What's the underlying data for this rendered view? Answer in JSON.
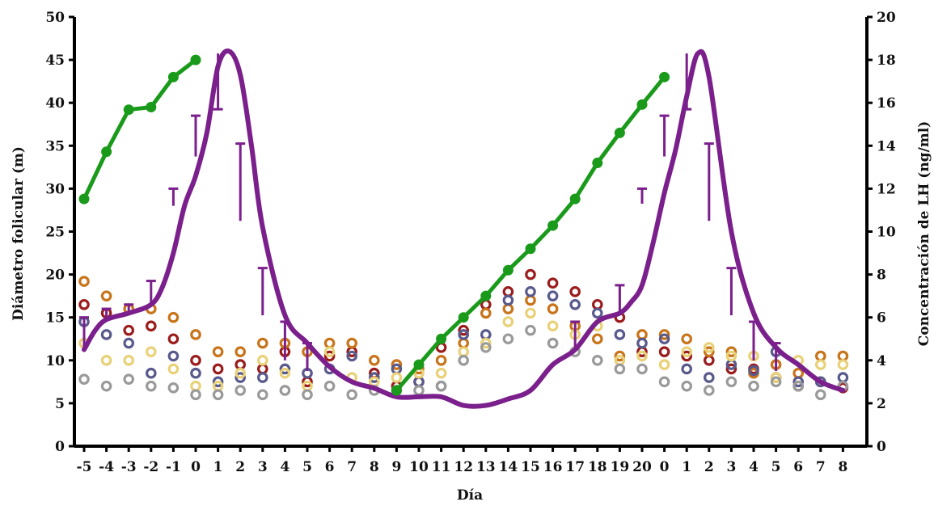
{
  "chart_data": {
    "type": "line",
    "xlabel": "Día",
    "ylabel_left": "Diámetro folicular (m)",
    "ylabel_right": "Concentración de LH (ng/ml)",
    "x_tick_labels": [
      "-5",
      "-4",
      "-3",
      "-2",
      "-1",
      "0",
      "1",
      "2",
      "3",
      "4",
      "5",
      "6",
      "7",
      "8",
      "9",
      "10",
      "11",
      "12",
      "13",
      "14",
      "15",
      "16",
      "17",
      "18",
      "19",
      "20",
      "0",
      "1",
      "2",
      "3",
      "4",
      "5",
      "6",
      "7",
      "8"
    ],
    "y_left": {
      "ylim": [
        0,
        50
      ],
      "ticks": [
        "0",
        "5",
        "10",
        "15",
        "20",
        "25",
        "30",
        "35",
        "40",
        "45",
        "50"
      ]
    },
    "y_right": {
      "ylim": [
        0,
        20
      ],
      "ticks": [
        "0",
        "2",
        "4",
        "6",
        "8",
        "10",
        "12",
        "14",
        "16",
        "18",
        "20"
      ]
    },
    "colors": {
      "dominant_follicle": "#1a9a1a",
      "lh": "#7a1f8c",
      "follicle_markers": [
        "#9b1c1c",
        "#c8741a",
        "#595a8c",
        "#e9d178",
        "#9a9a9a"
      ]
    },
    "series": [
      {
        "axis": "left",
        "x": [
          0,
          1,
          2,
          3,
          4,
          5
        ],
        "values": [
          28.8,
          34.3,
          39.2,
          39.5,
          43.0,
          45.0
        ]
      },
      {
        "axis": "left",
        "x": [
          14,
          15,
          16,
          17,
          18,
          19,
          20,
          21,
          22,
          23,
          24,
          25,
          26
        ],
        "values": [
          6.5,
          9.5,
          12.5,
          15.0,
          17.5,
          20.5,
          23.0,
          25.7,
          28.8,
          33.0,
          36.5,
          39.8,
          43.0
        ]
      },
      {
        "axis": "right",
        "x": [
          0,
          0.5,
          1,
          2,
          3,
          3.5,
          4,
          4.5,
          5,
          5.5,
          6,
          6.5,
          7,
          7.5,
          8,
          9,
          10,
          11,
          12,
          13,
          14,
          15,
          16,
          17,
          18,
          19,
          20,
          21,
          22,
          23,
          24,
          24.5,
          25,
          25.5,
          26,
          26.5,
          27,
          27.5,
          28,
          29,
          30,
          31,
          32,
          33,
          34
        ],
        "values": [
          4.5,
          5.4,
          5.9,
          6.2,
          6.6,
          7.4,
          9.0,
          11.2,
          12.6,
          14.6,
          17.7,
          18.4,
          17.3,
          14.0,
          10.2,
          6.1,
          4.8,
          3.7,
          3.0,
          2.7,
          2.3,
          2.3,
          2.3,
          1.9,
          1.9,
          2.2,
          2.6,
          3.8,
          4.5,
          5.8,
          6.2,
          6.7,
          7.5,
          9.5,
          11.8,
          13.8,
          16.3,
          18.3,
          17.2,
          10.0,
          6.2,
          4.6,
          3.8,
          3.0,
          2.6
        ]
      }
    ],
    "error_bars_right": [
      {
        "x": 0,
        "y": 4.5,
        "high": 6.0
      },
      {
        "x": 1,
        "y": 5.9,
        "high": 6.4
      },
      {
        "x": 2,
        "y": 6.2,
        "high": 6.6
      },
      {
        "x": 3,
        "y": 6.6,
        "high": 7.7
      },
      {
        "x": 4,
        "y": 11.2,
        "high": 12.0
      },
      {
        "x": 5,
        "y": 13.5,
        "high": 15.4
      },
      {
        "x": 6,
        "y": 18.3,
        "high": 15.7
      },
      {
        "x": 7,
        "y": 10.5,
        "high": 14.1
      },
      {
        "x": 8,
        "y": 6.1,
        "high": 8.3
      },
      {
        "x": 9,
        "y": 4.0,
        "high": 5.8
      },
      {
        "x": 10,
        "y": 3.5,
        "high": 4.8
      },
      {
        "x": 22,
        "y": 4.4,
        "high": 5.8
      },
      {
        "x": 24,
        "y": 6.2,
        "high": 7.5
      },
      {
        "x": 25,
        "y": 11.3,
        "high": 12.0
      },
      {
        "x": 26,
        "y": 13.5,
        "high": 15.4
      },
      {
        "x": 27,
        "y": 18.3,
        "high": 15.7
      },
      {
        "x": 28,
        "y": 10.5,
        "high": 14.1
      },
      {
        "x": 29,
        "y": 6.1,
        "high": 8.3
      },
      {
        "x": 30,
        "y": 4.0,
        "high": 5.8
      },
      {
        "x": 31,
        "y": 3.5,
        "high": 4.8
      }
    ],
    "follicle_markers_left": [
      [
        16.5,
        19.2,
        14.5,
        12.0,
        7.8
      ],
      [
        15.5,
        17.5,
        13.0,
        10.0,
        7.0
      ],
      [
        13.5,
        16.0,
        12.0,
        10.0,
        7.8
      ],
      [
        14.0,
        16.0,
        8.5,
        11.0,
        7.0
      ],
      [
        12.5,
        15.0,
        10.5,
        9.0,
        6.8
      ],
      [
        10.0,
        13.0,
        8.5,
        7.0,
        6.0
      ],
      [
        9.0,
        11.0,
        7.5,
        7.0,
        6.0
      ],
      [
        9.5,
        11.0,
        8.0,
        8.5,
        6.5
      ],
      [
        9.0,
        12.0,
        8.0,
        10.0,
        6.0
      ],
      [
        11.0,
        12.0,
        9.0,
        8.5,
        6.5
      ],
      [
        7.5,
        11.0,
        8.5,
        7.0,
        6.0
      ],
      [
        10.5,
        12.0,
        9.0,
        11.0,
        7.0
      ],
      [
        11.0,
        12.0,
        10.5,
        8.0,
        6.0
      ],
      [
        8.5,
        10.0,
        8.0,
        7.5,
        6.5
      ],
      [
        7.0,
        9.5,
        9.0,
        8.0,
        6.5
      ],
      [
        7.5,
        9.0,
        7.5,
        8.5,
        6.5
      ],
      [
        11.5,
        10.0,
        7.0,
        8.5,
        7.0
      ],
      [
        13.5,
        12.0,
        13.0,
        11.0,
        10.0
      ],
      [
        16.5,
        15.5,
        13.0,
        12.0,
        11.5
      ],
      [
        18.0,
        16.0,
        17.0,
        14.5,
        12.5
      ],
      [
        20.0,
        17.0,
        18.0,
        15.5,
        13.5
      ],
      [
        19.0,
        16.0,
        17.5,
        14.0,
        12.0
      ],
      [
        18.0,
        14.0,
        16.5,
        13.0,
        11.0
      ],
      [
        16.5,
        12.5,
        15.5,
        14.0,
        10.0
      ],
      [
        15.0,
        10.5,
        13.0,
        10.0,
        9.0
      ],
      [
        11.0,
        13.0,
        12.0,
        10.5,
        9.0
      ],
      [
        11.0,
        13.0,
        12.5,
        9.5,
        7.5
      ],
      [
        10.5,
        12.5,
        9.0,
        11.0,
        7.0
      ],
      [
        10.0,
        11.0,
        8.0,
        11.5,
        6.5
      ],
      [
        9.0,
        11.0,
        9.5,
        10.5,
        7.5
      ],
      [
        9.0,
        8.5,
        8.8,
        10.5,
        7.0
      ],
      [
        8.0,
        9.5,
        11.0,
        8.0,
        7.5
      ],
      [
        7.0,
        8.5,
        7.5,
        10.0,
        7.0
      ],
      [
        7.5,
        10.5,
        7.5,
        9.5,
        6.0
      ],
      [
        6.8,
        10.5,
        8.0,
        9.5,
        7.0
      ]
    ]
  }
}
